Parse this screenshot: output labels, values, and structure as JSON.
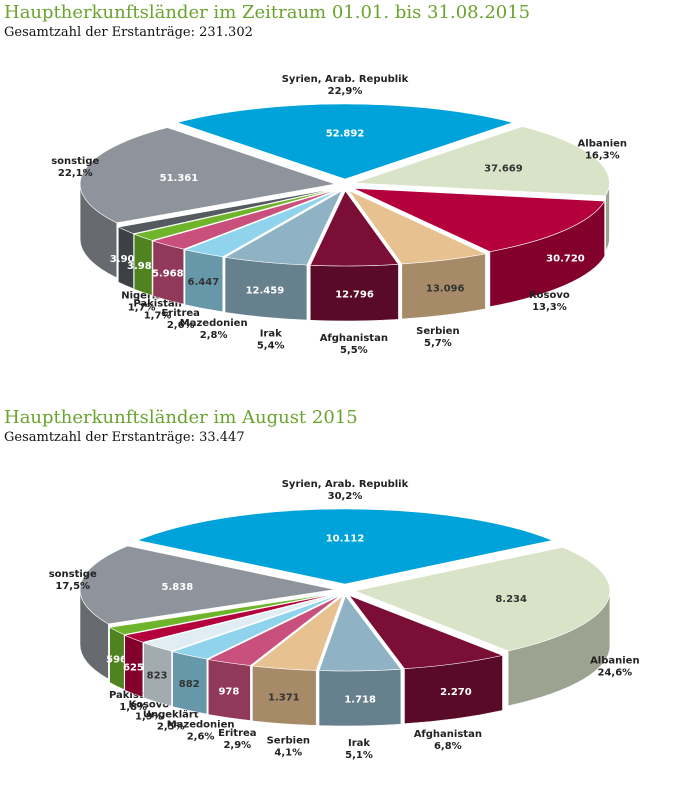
{
  "chart_data": [
    {
      "type": "pie",
      "title": "Hauptherkunftsländer im Zeitraum 01.01. bis 31.08.2015",
      "subtitle": "Gesamtzahl der Erstanträge: 231.302",
      "categories": [
        "Syrien, Arab. Republik",
        "Albanien",
        "Kosovo",
        "Serbien",
        "Afghanistan",
        "Irak",
        "Mazedonien",
        "Eritrea",
        "Pakistan",
        "Nigeria",
        "sonstige"
      ],
      "values": [
        52892,
        37669,
        30720,
        13096,
        12796,
        12459,
        6447,
        5968,
        3988,
        3906,
        51361
      ],
      "value_labels": [
        "52.892",
        "37.669",
        "30.720",
        "13.096",
        "12.796",
        "12.459",
        "6.447",
        "5.968",
        "3.988",
        "3.906",
        "51.361"
      ],
      "shares": [
        22.9,
        16.3,
        13.3,
        5.7,
        5.5,
        5.4,
        2.8,
        2.6,
        1.7,
        1.7,
        22.1
      ],
      "share_labels": [
        "22,9%",
        "16,3%",
        "13,3%",
        "5,7%",
        "5,5%",
        "5,4%",
        "2,8%",
        "2,6%",
        "1,7%",
        "1,7%",
        "22,1%"
      ],
      "colors": [
        "#00a3d9",
        "#d9e3c8",
        "#b4003c",
        "#e8c190",
        "#7a0e35",
        "#8fb2c4",
        "#8fd3ec",
        "#c94f7c",
        "#6fb52c",
        "#555a60",
        "#8f949c"
      ]
    },
    {
      "type": "pie",
      "title": "Hauptherkunftsländer im August 2015",
      "subtitle": "Gesamtzahl der Erstanträge: 33.447",
      "categories": [
        "Syrien, Arab. Republik",
        "Albanien",
        "Afghanistan",
        "Irak",
        "Serbien",
        "Eritrea",
        "Mazedonien",
        "Ungeklärt",
        "Kosovo",
        "Pakistan",
        "sonstige"
      ],
      "values": [
        10112,
        8234,
        2270,
        1718,
        1371,
        978,
        882,
        823,
        625,
        596,
        5838
      ],
      "value_labels": [
        "10.112",
        "8.234",
        "2.270",
        "1.718",
        "1.371",
        "978",
        "882",
        "823",
        "625",
        "596",
        "5.838"
      ],
      "shares": [
        30.2,
        24.6,
        6.8,
        5.1,
        4.1,
        2.9,
        2.6,
        2.5,
        1.9,
        1.8,
        17.5
      ],
      "share_labels": [
        "30,2%",
        "24,6%",
        "6,8%",
        "5,1%",
        "4,1%",
        "2,9%",
        "2,6%",
        "2,5%",
        "1,9%",
        "1,8%",
        "17,5%"
      ],
      "colors": [
        "#00a3d9",
        "#d9e3c8",
        "#7a0e35",
        "#8fb2c4",
        "#e8c190",
        "#c94f7c",
        "#8fd3ec",
        "#e0eef4",
        "#b4003c",
        "#6fb52c",
        "#8f949c"
      ]
    }
  ]
}
